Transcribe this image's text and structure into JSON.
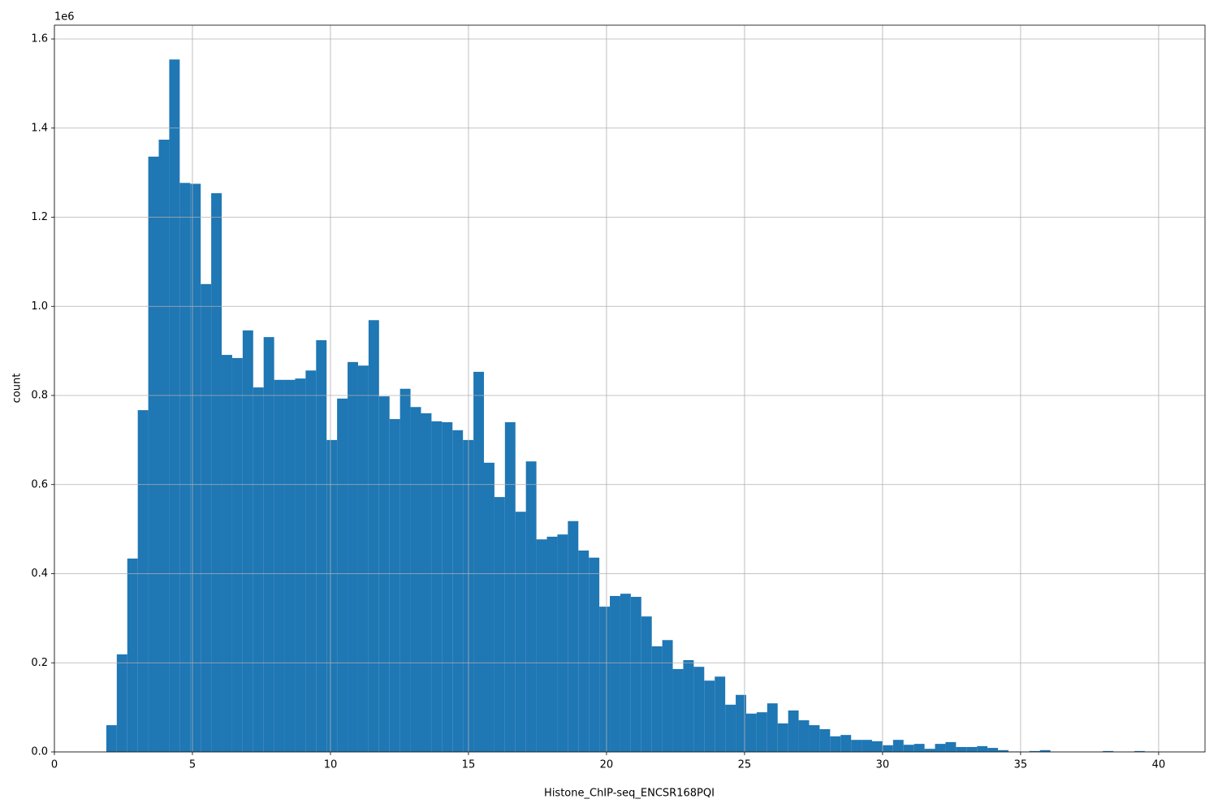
{
  "chart_data": {
    "type": "histogram",
    "x_label": "Histone_ChIP-seq_ENCSR168PQI",
    "y_label": "count",
    "y_offset_label": "1e6",
    "color": "#1f77b4",
    "grid": true,
    "bins": [
      1.88,
      2.26,
      2.64,
      3.02,
      3.4,
      3.78,
      4.16,
      4.54,
      4.92,
      5.3,
      5.68,
      6.06,
      6.44,
      6.82,
      7.2,
      7.58,
      7.96,
      8.34,
      8.72,
      9.1,
      9.48,
      9.86,
      10.24,
      10.62,
      11.0,
      11.38,
      11.76,
      12.14,
      12.52,
      12.9,
      13.28,
      13.66,
      14.04,
      14.42,
      14.8,
      15.18,
      15.56,
      15.94,
      16.32,
      16.7,
      17.08,
      17.46,
      17.84,
      18.22,
      18.6,
      18.98,
      19.36,
      19.74,
      20.12,
      20.5,
      20.88,
      21.26,
      21.64,
      22.02,
      22.4,
      22.78,
      23.16,
      23.54,
      23.92,
      24.3,
      24.68,
      25.06,
      25.44,
      25.82,
      26.2,
      26.58,
      26.96,
      27.34,
      27.72,
      28.1,
      28.48,
      28.86,
      29.24,
      29.62,
      30.0,
      30.38,
      30.76,
      31.14,
      31.52,
      31.9,
      32.28,
      32.66,
      33.04,
      33.42,
      33.8,
      34.18,
      34.56,
      34.94,
      35.32,
      35.7,
      36.08,
      36.46,
      36.84,
      37.22,
      37.6,
      37.98,
      38.36,
      38.74,
      39.12,
      39.5,
      39.88
    ],
    "counts": [
      60000,
      219000,
      434000,
      767000,
      1336000,
      1374000,
      1554000,
      1277000,
      1275000,
      1050000,
      1254000,
      891000,
      884000,
      946000,
      818000,
      931000,
      835000,
      835000,
      838000,
      856000,
      924000,
      700000,
      793000,
      875000,
      867000,
      969000,
      798000,
      747000,
      815000,
      774000,
      760000,
      742000,
      740000,
      722000,
      700000,
      853000,
      649000,
      572000,
      740000,
      539000,
      652000,
      477000,
      483000,
      488000,
      518000,
      452000,
      436000,
      326000,
      350000,
      355000,
      348000,
      304000,
      237000,
      251000,
      186000,
      206000,
      191000,
      160000,
      169000,
      106000,
      128000,
      86000,
      89000,
      109000,
      64000,
      93000,
      71000,
      60000,
      51000,
      35000,
      38000,
      27000,
      27000,
      24000,
      15000,
      27000,
      16000,
      18000,
      7000,
      18000,
      22000,
      11000,
      11000,
      13000,
      9000,
      4000,
      1000,
      0,
      2000,
      4000,
      0,
      0,
      0,
      0,
      0,
      2000,
      0,
      0,
      2000,
      1000
    ],
    "xlim": [
      0,
      41.68
    ],
    "xticks": [
      0,
      5,
      10,
      15,
      20,
      25,
      30,
      35,
      40
    ],
    "ylim": [
      0,
      1631000
    ],
    "yticks": [
      {
        "value": 0,
        "label": "0.0"
      },
      {
        "value": 200000,
        "label": "0.2"
      },
      {
        "value": 400000,
        "label": "0.4"
      },
      {
        "value": 600000,
        "label": "0.6"
      },
      {
        "value": 800000,
        "label": "0.8"
      },
      {
        "value": 1000000,
        "label": "1.0"
      },
      {
        "value": 1200000,
        "label": "1.2"
      },
      {
        "value": 1400000,
        "label": "1.4"
      },
      {
        "value": 1600000,
        "label": "1.6"
      }
    ]
  }
}
